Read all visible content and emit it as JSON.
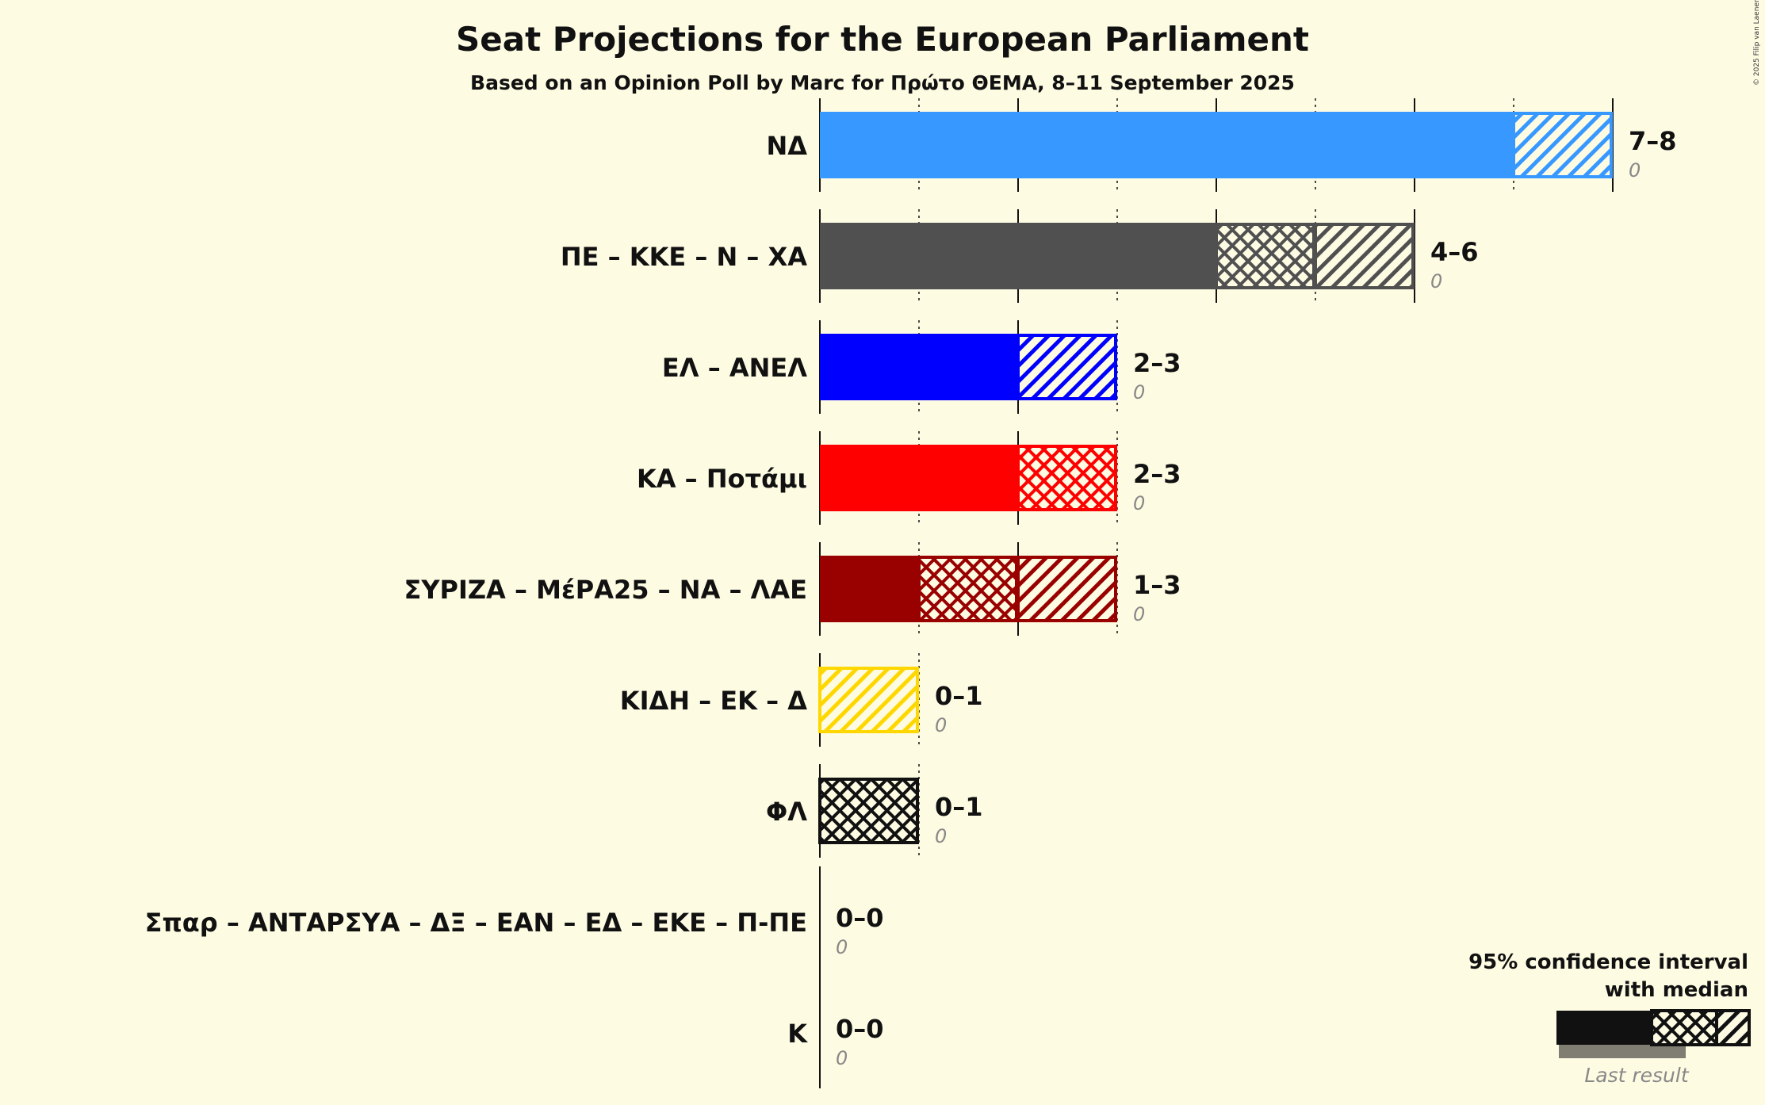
{
  "chart_data": {
    "type": "bar",
    "title": "Seat Projections for the European Parliament",
    "subtitle": "Based on an Opinion Poll by Marc for Πρώτο ΘΕΜΑ, 8–11 September 2025",
    "xlabel": "",
    "ylabel": "",
    "xlim": [
      0,
      8
    ],
    "grid": true,
    "parties": [
      {
        "name": "ΝΔ",
        "low": 7,
        "median": 7,
        "high": 8,
        "range_label": "7–8",
        "last": "0",
        "color": "#3799FF"
      },
      {
        "name": "ΠΕ – ΚΚΕ – Ν – ΧΑ",
        "low": 4,
        "median": 5,
        "high": 6,
        "range_label": "4–6",
        "last": "0",
        "color": "#505050"
      },
      {
        "name": "ΕΛ – ΑΝΕΛ",
        "low": 2,
        "median": 2,
        "high": 3,
        "range_label": "2–3",
        "last": "0",
        "color": "#0000FF"
      },
      {
        "name": "ΚΑ – Ποτάμι",
        "low": 2,
        "median": 3,
        "high": 3,
        "range_label": "2–3",
        "last": "0",
        "color": "#FF0000"
      },
      {
        "name": "ΣΥΡΙΖΑ – ΜέΡΑ25 – ΝΑ – ΛΑΕ",
        "low": 1,
        "median": 2,
        "high": 3,
        "range_label": "1–3",
        "last": "0",
        "color": "#990000"
      },
      {
        "name": "ΚΙΔΗ – ΕΚ – Δ",
        "low": 0,
        "median": 0,
        "high": 1,
        "range_label": "0–1",
        "last": "0",
        "color": "#FFD700"
      },
      {
        "name": "ΦΛ",
        "low": 0,
        "median": 1,
        "high": 1,
        "range_label": "0–1",
        "last": "0",
        "color": "#111111"
      },
      {
        "name": "Σπαρ – ΑΝΤΑΡΣΥΑ – ΔΞ – ΕΑΝ – ΕΔ – ΕΚΕ – Π-ΠΕ",
        "low": 0,
        "median": 0,
        "high": 0,
        "range_label": "0–0",
        "last": "0",
        "color": "#888888"
      },
      {
        "name": "Κ",
        "low": 0,
        "median": 0,
        "high": 0,
        "range_label": "0–0",
        "last": "0",
        "color": "#888888"
      }
    ],
    "legend": {
      "line1": "95% confidence interval",
      "line2": "with median",
      "last_result": "Last result",
      "placement": "bottom-right"
    }
  },
  "copyright": "© 2025 Filip van Laenen"
}
